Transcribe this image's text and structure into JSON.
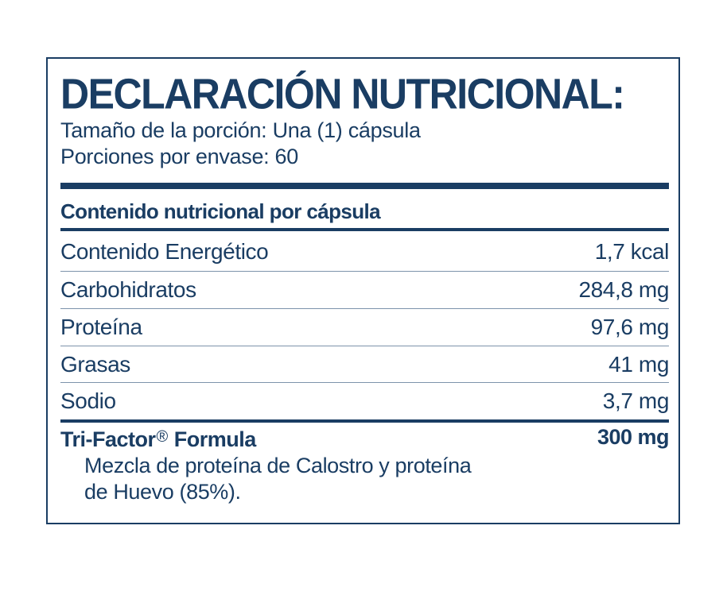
{
  "label": {
    "title": "DECLARACIÓN NUTRICIONAL:",
    "serving_size": "Tamaño de la porción: Una (1) cápsula",
    "servings_per_container": "Porciones por envase: 60",
    "section_header": "Contenido nutricional por cápsula",
    "nutrients": [
      {
        "name": "Contenido Energético",
        "value": "1,7 kcal"
      },
      {
        "name": "Carbohidratos",
        "value": "284,8 mg"
      },
      {
        "name": "Proteína",
        "value": "97,6 mg"
      },
      {
        "name": "Grasas",
        "value": "41 mg"
      },
      {
        "name": "Sodio",
        "value": "3,7 mg"
      }
    ],
    "formula": {
      "name": "Tri-Factor",
      "registered_mark": "®",
      "suffix": "Formula",
      "amount": "300 mg",
      "description_line1": "Mezcla de proteína de Calostro y proteína",
      "description_line2": "de Huevo (85%)."
    },
    "colors": {
      "primary": "#1a3d63",
      "divider": "#7d93ab"
    }
  }
}
